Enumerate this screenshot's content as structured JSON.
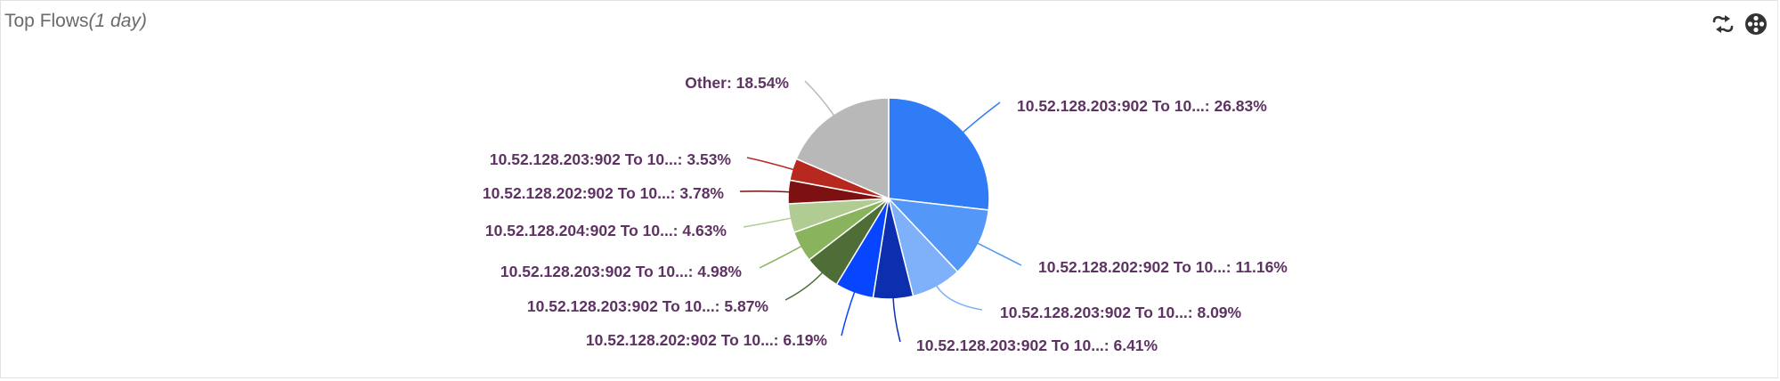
{
  "panel": {
    "title": "Top Flows",
    "range": "(1 day)"
  },
  "toolbar": {
    "icons": [
      "swap-icon",
      "settings-icon"
    ]
  },
  "chart_data": {
    "type": "pie",
    "title": "",
    "slices": [
      {
        "label": "10.52.128.203:902 To 10...",
        "value": 26.83,
        "display": "10.52.128.203:902 To 10...: 26.83%",
        "color": "#2f7cf6"
      },
      {
        "label": "10.52.128.202:902 To 10...",
        "value": 11.16,
        "display": "10.52.128.202:902 To 10...: 11.16%",
        "color": "#5397f8"
      },
      {
        "label": "10.52.128.203:902 To 10...",
        "value": 8.09,
        "display": "10.52.128.203:902 To 10...: 8.09%",
        "color": "#7fb1fa"
      },
      {
        "label": "10.52.128.203:902 To 10...",
        "value": 6.41,
        "display": "10.52.128.203:902 To 10...: 6.41%",
        "color": "#0b2fae"
      },
      {
        "label": "10.52.128.202:902 To 10...",
        "value": 6.19,
        "display": "10.52.128.202:902 To 10...: 6.19%",
        "color": "#0845ff"
      },
      {
        "label": "10.52.128.203:902 To 10...",
        "value": 5.87,
        "display": "10.52.128.203:902 To 10...: 5.87%",
        "color": "#4f6e37"
      },
      {
        "label": "10.52.128.203:902 To 10...",
        "value": 4.98,
        "display": "10.52.128.203:902 To 10...: 4.98%",
        "color": "#8ab35d"
      },
      {
        "label": "10.52.128.204:902 To 10...",
        "value": 4.63,
        "display": "10.52.128.204:902 To 10...: 4.63%",
        "color": "#b0cc92"
      },
      {
        "label": "10.52.128.202:902 To 10...",
        "value": 3.78,
        "display": "10.52.128.202:902 To 10...: 3.78%",
        "color": "#7d1010"
      },
      {
        "label": "10.52.128.203:902 To 10...",
        "value": 3.53,
        "display": "10.52.128.203:902 To 10...: 3.53%",
        "color": "#b7291f"
      },
      {
        "label": "Other",
        "value": 18.54,
        "display": "Other: 18.54%",
        "color": "#b8b8b8"
      }
    ]
  }
}
